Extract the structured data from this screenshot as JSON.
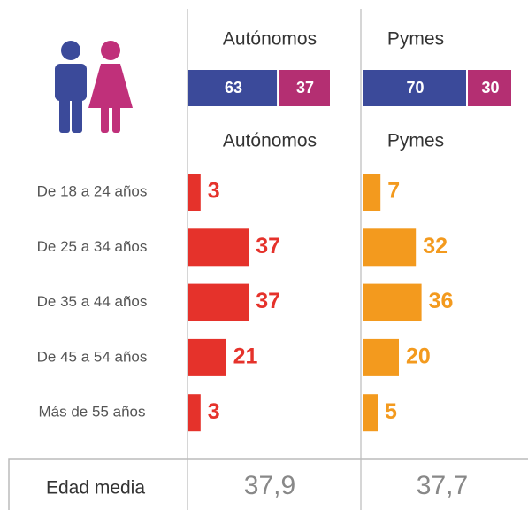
{
  "chart_data": [
    {
      "type": "stacked_bar",
      "categories": [
        "Autónomos",
        "Pymes"
      ],
      "series": [
        {
          "color": "#3b4a9a",
          "values": [
            63,
            70
          ]
        },
        {
          "color": "#b42f72",
          "values": [
            37,
            30
          ]
        }
      ]
    },
    {
      "type": "bar",
      "categories": [
        "De 18 a 24 años",
        "De 25 a 34 años",
        "De 35 a 44 años",
        "De 45 a 54 años",
        "Más de 55 años"
      ],
      "series": [
        {
          "name": "Autónomos",
          "color": "#e5322b",
          "values": [
            3,
            37,
            37,
            21,
            3
          ]
        },
        {
          "name": "Pymes",
          "color": "#f39a1e",
          "values": [
            7,
            32,
            36,
            20,
            5
          ]
        }
      ]
    }
  ],
  "average": {
    "label": "Edad media",
    "values": [
      37.9,
      37.7
    ],
    "value_labels": [
      "37,9",
      "37,7"
    ]
  }
}
